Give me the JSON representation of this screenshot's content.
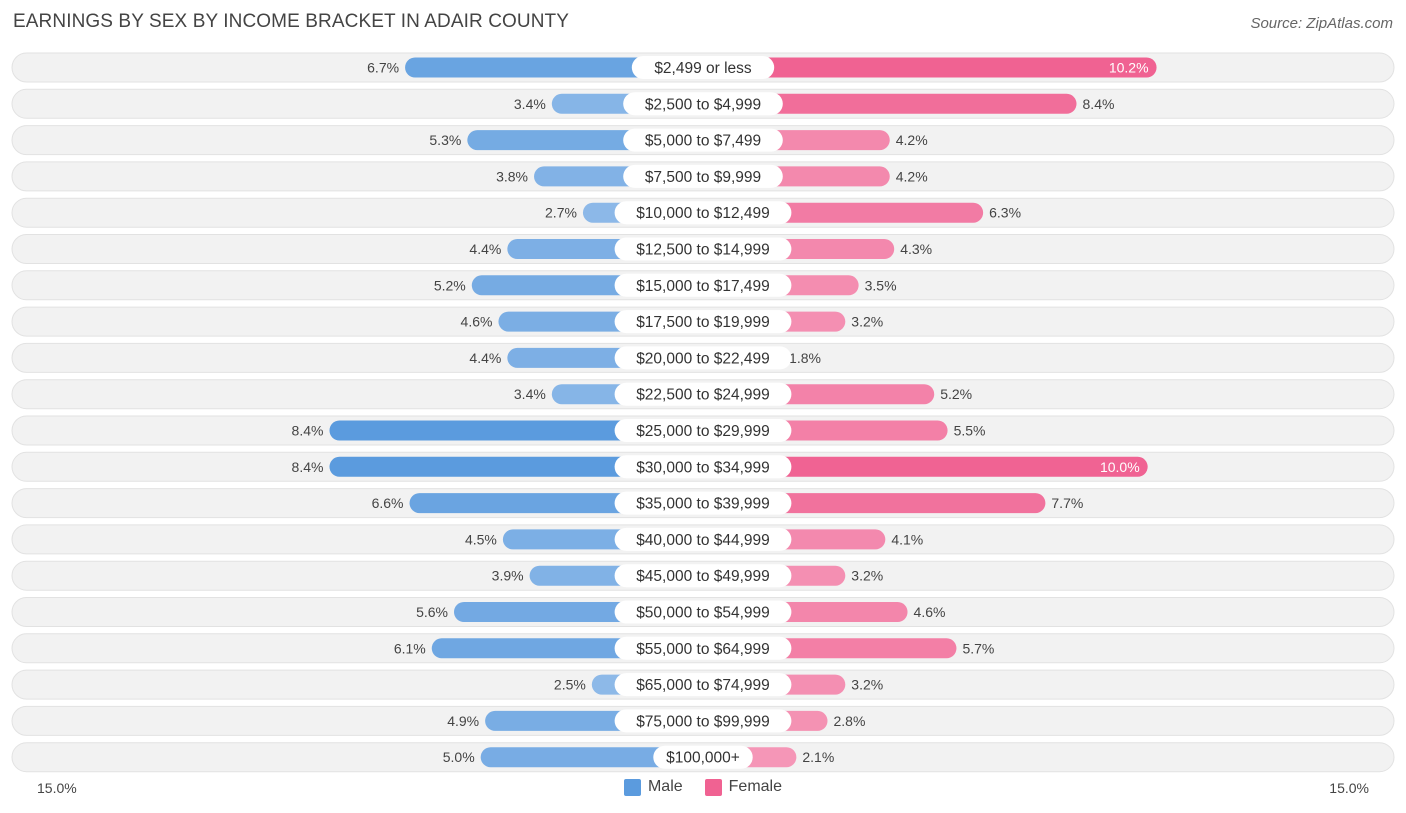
{
  "title": "EARNINGS BY SEX BY INCOME BRACKET IN ADAIR COUNTY",
  "source": "Source: ZipAtlas.com",
  "colors": {
    "male": "#5b9bde",
    "female": "#f06292",
    "row_bg": "#f2f2f2"
  },
  "axis": {
    "left_label": "15.0%",
    "right_label": "15.0%"
  },
  "legend": {
    "male": "Male",
    "female": "Female"
  },
  "chart_data": {
    "type": "bar",
    "orientation": "diverging-horizontal",
    "categories": [
      "$2,499 or less",
      "$2,500 to $4,999",
      "$5,000 to $7,499",
      "$7,500 to $9,999",
      "$10,000 to $12,499",
      "$12,500 to $14,999",
      "$15,000 to $17,499",
      "$17,500 to $19,999",
      "$20,000 to $22,499",
      "$22,500 to $24,999",
      "$25,000 to $29,999",
      "$30,000 to $34,999",
      "$35,000 to $39,999",
      "$40,000 to $44,999",
      "$45,000 to $49,999",
      "$50,000 to $54,999",
      "$55,000 to $64,999",
      "$65,000 to $74,999",
      "$75,000 to $99,999",
      "$100,000+"
    ],
    "series": [
      {
        "name": "Male",
        "values": [
          6.7,
          3.4,
          5.3,
          3.8,
          2.7,
          4.4,
          5.2,
          4.6,
          4.4,
          3.4,
          8.4,
          8.4,
          6.6,
          4.5,
          3.9,
          5.6,
          6.1,
          2.5,
          4.9,
          5.0
        ],
        "labels": [
          "6.7%",
          "3.4%",
          "5.3%",
          "3.8%",
          "2.7%",
          "4.4%",
          "5.2%",
          "4.6%",
          "4.4%",
          "3.4%",
          "8.4%",
          "8.4%",
          "6.6%",
          "4.5%",
          "3.9%",
          "5.6%",
          "6.1%",
          "2.5%",
          "4.9%",
          "5.0%"
        ]
      },
      {
        "name": "Female",
        "values": [
          10.2,
          8.4,
          4.2,
          4.2,
          6.3,
          4.3,
          3.5,
          3.2,
          1.8,
          5.2,
          5.5,
          10.0,
          7.7,
          4.1,
          3.2,
          4.6,
          5.7,
          3.2,
          2.8,
          2.1
        ],
        "labels": [
          "10.2%",
          "8.4%",
          "4.2%",
          "4.2%",
          "6.3%",
          "4.3%",
          "3.5%",
          "3.2%",
          "1.8%",
          "5.2%",
          "5.5%",
          "10.0%",
          "7.7%",
          "4.1%",
          "3.2%",
          "4.6%",
          "5.7%",
          "3.2%",
          "2.8%",
          "2.1%"
        ]
      }
    ],
    "xlim": [
      -15.0,
      15.0
    ],
    "legend_position": "bottom-center"
  }
}
